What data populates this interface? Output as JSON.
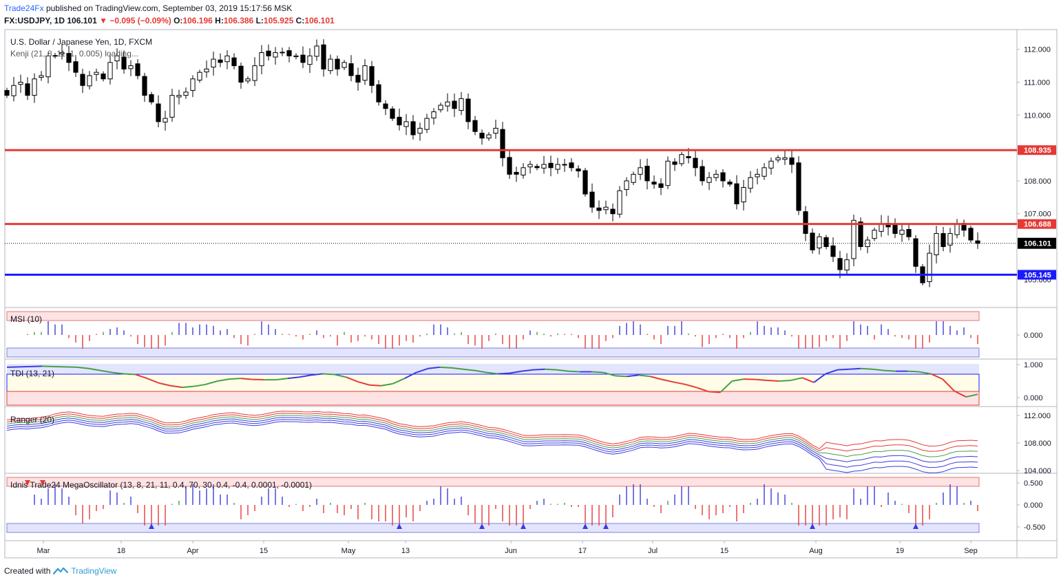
{
  "header": {
    "brand": "Trade24Fx",
    "published": "published on TradingView.com, September 03, 2019 15:17:56 MSK",
    "symbol": "FX:USDJPY, 1D",
    "last": "106.101",
    "change": "−0.095 (−0.09%)",
    "o_label": "O:",
    "o": "106.196",
    "h_label": "H:",
    "h": "106.386",
    "l_label": "L:",
    "l": "105.925",
    "c_label": "C:",
    "c": "106.101"
  },
  "footer": {
    "created": "Created with",
    "logo_text": "TradingView"
  },
  "colors": {
    "red_line": "#e53935",
    "blue_line": "#1a1aff",
    "bull": "#ffffff",
    "bear": "#000000"
  },
  "chart_data": [
    {
      "type": "candlestick",
      "title": "U.S. Dollar / Japanese Yen, 1D, FXCM",
      "subtitle": "Kenji (21, 8, 11, 1, 0.005) loading...",
      "ylim": [
        104.15,
        112.6
      ],
      "yticks": [
        "112.000",
        "111.000",
        "110.000",
        "108.000",
        "107.000"
      ],
      "hidden_tick": "105.000",
      "x_labels": [
        "Mar",
        "18",
        "Apr",
        "15",
        "May",
        "13",
        "Jun",
        "17",
        "Jul",
        "15",
        "Aug",
        "19",
        "Sep"
      ],
      "levels": [
        {
          "label": "108.935",
          "value": 108.935,
          "color": "#e53935"
        },
        {
          "label": "106.688",
          "value": 106.688,
          "color": "#e53935"
        },
        {
          "label": "105.145",
          "value": 105.145,
          "color": "#1a1aff"
        }
      ],
      "last_price": {
        "label": "106.101",
        "value": 106.101
      },
      "closes": [
        110.6,
        110.9,
        111.0,
        110.6,
        111.1,
        111.2,
        111.8,
        111.8,
        111.9,
        111.6,
        111.3,
        110.9,
        111.2,
        111.3,
        111.1,
        111.6,
        111.8,
        111.4,
        111.5,
        111.2,
        110.6,
        110.4,
        109.8,
        109.9,
        110.6,
        110.6,
        110.7,
        111.1,
        111.3,
        111.4,
        111.7,
        111.6,
        111.8,
        111.5,
        111.0,
        111.1,
        111.5,
        111.9,
        111.8,
        111.9,
        111.9,
        111.8,
        111.8,
        111.6,
        111.8,
        112.1,
        111.4,
        111.7,
        111.4,
        111.6,
        111.2,
        111.0,
        111.5,
        110.9,
        110.4,
        110.2,
        109.9,
        109.7,
        109.8,
        109.4,
        109.6,
        109.9,
        110.1,
        110.3,
        110.4,
        110.2,
        110.5,
        109.8,
        109.5,
        109.3,
        109.4,
        109.6,
        108.7,
        108.2,
        108.2,
        108.4,
        108.5,
        108.4,
        108.5,
        108.4,
        108.5,
        108.5,
        108.4,
        108.3,
        107.6,
        107.2,
        107.1,
        107.2,
        107.0,
        107.7,
        108.0,
        108.2,
        108.4,
        108.0,
        107.9,
        107.8,
        108.6,
        108.5,
        108.8,
        108.7,
        108.4,
        108.0,
        108.1,
        108.2,
        108.0,
        107.9,
        107.3,
        107.8,
        108.1,
        108.2,
        108.4,
        108.6,
        108.7,
        108.7,
        108.5,
        107.1,
        106.4,
        105.9,
        106.3,
        106.0,
        105.7,
        105.3,
        105.6,
        106.8,
        106.0,
        106.2,
        106.5,
        106.7,
        106.6,
        106.4,
        106.5,
        106.3,
        105.4,
        104.9,
        105.8,
        106.4,
        106.0,
        106.4,
        106.7,
        106.5,
        106.2,
        106.1
      ],
      "volatility_note": ""
    },
    {
      "type": "bar",
      "title": "MSI (10)",
      "ylim": [
        -1,
        1
      ],
      "ytick": "0.000"
    },
    {
      "type": "line",
      "title": "TDI (13, 21)",
      "yticks": [
        "1.000",
        "0.000"
      ],
      "values": [
        0.92,
        0.93,
        0.94,
        0.95,
        0.94,
        0.93,
        0.92,
        0.88,
        0.82,
        0.76,
        0.72,
        0.7,
        0.58,
        0.44,
        0.36,
        0.31,
        0.34,
        0.4,
        0.5,
        0.56,
        0.58,
        0.55,
        0.54,
        0.54,
        0.58,
        0.62,
        0.68,
        0.72,
        0.7,
        0.62,
        0.48,
        0.38,
        0.36,
        0.42,
        0.58,
        0.76,
        0.88,
        0.92,
        0.9,
        0.86,
        0.82,
        0.76,
        0.72,
        0.74,
        0.8,
        0.84,
        0.86,
        0.84,
        0.8,
        0.78,
        0.78,
        0.76,
        0.66,
        0.64,
        0.68,
        0.64,
        0.55,
        0.47,
        0.4,
        0.3,
        0.18,
        0.16,
        0.5,
        0.56,
        0.55,
        0.52,
        0.5,
        0.52,
        0.6,
        0.46,
        0.72,
        0.84,
        0.86,
        0.88,
        0.86,
        0.82,
        0.8,
        0.8,
        0.78,
        0.72,
        0.56,
        0.2,
        0.02,
        0.1
      ]
    },
    {
      "type": "line",
      "title": "Ranger (20)",
      "yticks": [
        "112.000",
        "108.000",
        "104.000"
      ]
    },
    {
      "type": "bar",
      "title": "Idnis Trade24 MegaOscillator (13, 8, 21, 11, 0.4, 70, 30, 0.4, -0.4, 0.0001, -0.0001)",
      "yticks": [
        "0.500",
        "0.000",
        "-0.500"
      ]
    }
  ]
}
